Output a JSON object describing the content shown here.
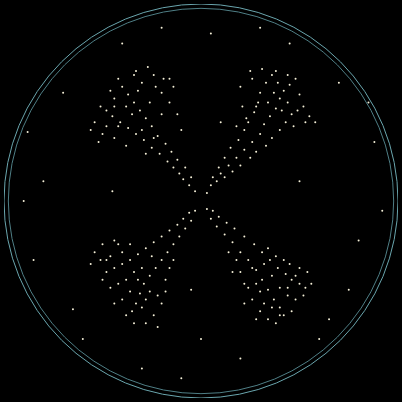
{
  "chart_data": {
    "type": "scatter",
    "color": "#f5f0d8",
    "grid": false,
    "tick_labels": false,
    "xlim": [
      -100,
      100
    ],
    "ylim": [
      -100,
      100
    ],
    "x": [
      3,
      5,
      8,
      6,
      10,
      12,
      9,
      14,
      16,
      12,
      18,
      20,
      15,
      22,
      25,
      19,
      26,
      28,
      22,
      30,
      33,
      24,
      32,
      36,
      27,
      35,
      40,
      29,
      38,
      43,
      30,
      40,
      46,
      33,
      42,
      49,
      36,
      45,
      52,
      26,
      38,
      48,
      55,
      20,
      31,
      50,
      44,
      37,
      28,
      23,
      34,
      41,
      47,
      18,
      21,
      53,
      58,
      25,
      44,
      39,
      -3,
      -6,
      -9,
      -5,
      -11,
      -8,
      -14,
      -12,
      -17,
      -15,
      -21,
      -18,
      -25,
      -22,
      -29,
      -25,
      -33,
      -28,
      -37,
      -31,
      -41,
      -34,
      -45,
      -37,
      -48,
      -40,
      -51,
      -42,
      -54,
      -30,
      -20,
      -24,
      -34,
      -46,
      -56,
      -50,
      -44,
      -38,
      -16,
      -20,
      -26,
      -32,
      -38,
      -44,
      -27,
      -19,
      -14,
      -48,
      -52,
      -42,
      -35,
      -30,
      -24,
      -28,
      -12,
      -16,
      -33,
      -44,
      -23,
      -10,
      -3,
      -6,
      -5,
      -9,
      -8,
      -12,
      -11,
      -16,
      -14,
      -20,
      -17,
      -24,
      -20,
      -28,
      -23,
      -32,
      -26,
      -36,
      -29,
      -40,
      -31,
      -44,
      -33,
      -48,
      -35,
      -51,
      -24,
      -28,
      -40,
      -46,
      -54,
      -50,
      -44,
      -38,
      -22,
      -18,
      -30,
      -42,
      -36,
      -26,
      -34,
      -40,
      -46,
      -20,
      -16,
      -32,
      -48,
      -38,
      -22,
      -30,
      -25,
      -14,
      -50,
      -44,
      -34,
      -18,
      -42,
      -56,
      -28,
      -36,
      3,
      6,
      5,
      9,
      8,
      13,
      12,
      17,
      16,
      22,
      20,
      27,
      24,
      31,
      28,
      35,
      31,
      39,
      34,
      43,
      37,
      46,
      40,
      50,
      42,
      53,
      34,
      30,
      48,
      26,
      22,
      40,
      45,
      50,
      36,
      30,
      44,
      38,
      26,
      32,
      20,
      18,
      46,
      38,
      54,
      42,
      28,
      34,
      24,
      52,
      40,
      28,
      14,
      48,
      36,
      44,
      56,
      32,
      22,
      16,
      -80,
      70,
      -60,
      80,
      5,
      -10,
      -85,
      60,
      88,
      -70,
      20,
      -40,
      45,
      -90,
      75,
      -30,
      10,
      -45,
      50,
      -5,
      92,
      -65,
      30,
      -88,
      65,
      0,
      -20,
      85
    ],
    "values": [
      4,
      8,
      10,
      12,
      14,
      12,
      17,
      18,
      15,
      22,
      22,
      18,
      27,
      26,
      22,
      31,
      30,
      25,
      36,
      34,
      28,
      40,
      39,
      32,
      45,
      43,
      36,
      50,
      47,
      40,
      55,
      52,
      44,
      60,
      56,
      46,
      64,
      59,
      48,
      62,
      66,
      62,
      43,
      58,
      67,
      54,
      50,
      55,
      48,
      42,
      50,
      46,
      38,
      38,
      48,
      40,
      40,
      66,
      64,
      60,
      5,
      8,
      11,
      12,
      14,
      17,
      17,
      21,
      20,
      25,
      24,
      29,
      27,
      33,
      31,
      38,
      34,
      42,
      37,
      46,
      40,
      50,
      43,
      54,
      46,
      58,
      48,
      62,
      40,
      60,
      55,
      64,
      64,
      56,
      36,
      34,
      32,
      28,
      50,
      44,
      50,
      56,
      48,
      52,
      68,
      62,
      58,
      38,
      30,
      38,
      44,
      36,
      32,
      24,
      44,
      62,
      66,
      48,
      58,
      36,
      -5,
      -6,
      -10,
      -9,
      -14,
      -12,
      -18,
      -15,
      -22,
      -18,
      -26,
      -21,
      -30,
      -24,
      -34,
      -27,
      -38,
      -30,
      -42,
      -32,
      -47,
      -34,
      -52,
      -36,
      -56,
      -30,
      -58,
      -62,
      -50,
      -44,
      -26,
      -22,
      -20,
      -40,
      -48,
      -40,
      -54,
      -42,
      -46,
      -46,
      -36,
      -26,
      -28,
      -52,
      -34,
      -40,
      -30,
      -58,
      -64,
      -34,
      -28,
      -30,
      -40,
      -52,
      -62,
      -46,
      -22,
      -32,
      -50,
      -22,
      -4,
      -5,
      -9,
      -8,
      -13,
      -11,
      -17,
      -14,
      -21,
      -18,
      -26,
      -22,
      -30,
      -26,
      -35,
      -30,
      -40,
      -34,
      -45,
      -37,
      -50,
      -40,
      -54,
      -42,
      -58,
      -44,
      -60,
      -56,
      -50,
      -50,
      -42,
      -44,
      -32,
      -34,
      -38,
      -46,
      -48,
      -28,
      -34,
      -52,
      -36,
      -30,
      -56,
      -62,
      -36,
      -30,
      -42,
      -24,
      -44,
      -48,
      -58,
      -60,
      -26,
      -38,
      -54,
      -44,
      -42,
      -32,
      -52,
      -36,
      10,
      60,
      -70,
      -20,
      85,
      -90,
      -30,
      -70,
      30,
      55,
      -80,
      80,
      80,
      0,
      -45,
      -85,
      40,
      5,
      10,
      -45,
      -5,
      -55,
      88,
      35,
      -60,
      -70,
      88,
      50
    ]
  }
}
